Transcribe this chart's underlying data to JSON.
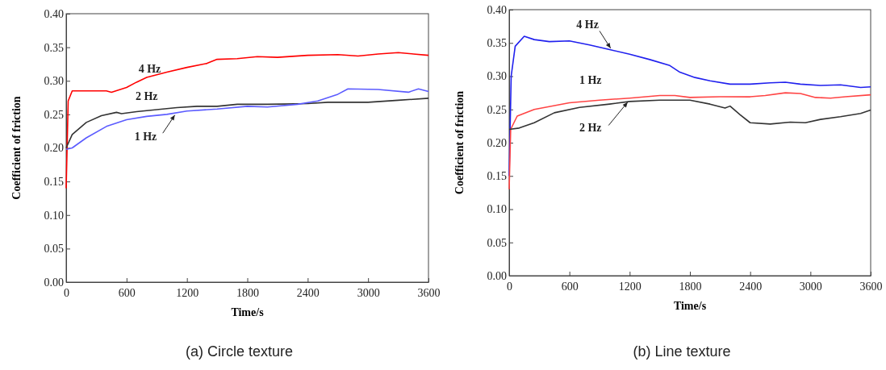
{
  "chart_data": [
    {
      "type": "line",
      "title": "(a) Circle texture",
      "xlabel": "Time/s",
      "ylabel": "Coefficient of friction",
      "xlim": [
        0,
        3600
      ],
      "xticks": [
        0,
        600,
        1200,
        1800,
        2400,
        3000,
        3600
      ],
      "ylim": [
        0,
        0.4
      ],
      "yticks": [
        {
          "value": 0,
          "label": "0.00"
        },
        {
          "value": 0.05,
          "label": "0.05"
        },
        {
          "value": 0.1,
          "label": "0.10"
        },
        {
          "value": 0.15,
          "label": "0.15"
        },
        {
          "value": 0.2,
          "label": "0.20"
        },
        {
          "value": 0.25,
          "label": "0.25"
        },
        {
          "value": 0.3,
          "label": "0.30"
        },
        {
          "value": 0.35,
          "label": "0.35"
        },
        {
          "value": 0.4,
          "label": "0.40"
        }
      ],
      "grid": false,
      "series": [
        {
          "name": "4 Hz",
          "color": "#ff0000",
          "x": [
            0,
            20,
            60,
            200,
            400,
            450,
            600,
            700,
            800,
            1000,
            1200,
            1400,
            1500,
            1700,
            1900,
            2100,
            2400,
            2700,
            2900,
            3100,
            3300,
            3450,
            3600
          ],
          "values": [
            0.14,
            0.27,
            0.285,
            0.285,
            0.285,
            0.283,
            0.29,
            0.298,
            0.305,
            0.313,
            0.32,
            0.326,
            0.332,
            0.333,
            0.336,
            0.335,
            0.338,
            0.339,
            0.337,
            0.34,
            0.342,
            0.34,
            0.338
          ]
        },
        {
          "name": "2 Hz",
          "color": "#333333",
          "x": [
            0,
            60,
            200,
            350,
            500,
            550,
            700,
            900,
            1100,
            1300,
            1500,
            1700,
            2000,
            2400,
            2600,
            3000,
            3300,
            3600
          ],
          "values": [
            0.2,
            0.22,
            0.238,
            0.248,
            0.253,
            0.251,
            0.254,
            0.257,
            0.26,
            0.262,
            0.262,
            0.265,
            0.265,
            0.266,
            0.268,
            0.268,
            0.271,
            0.274
          ]
        },
        {
          "name": "1 Hz",
          "color": "#5b5bff",
          "x": [
            0,
            60,
            200,
            400,
            600,
            800,
            1000,
            1200,
            1500,
            1800,
            2000,
            2300,
            2500,
            2700,
            2800,
            3100,
            3400,
            3500,
            3600
          ],
          "values": [
            0.198,
            0.2,
            0.215,
            0.232,
            0.242,
            0.247,
            0.25,
            0.255,
            0.258,
            0.262,
            0.261,
            0.265,
            0.27,
            0.28,
            0.288,
            0.287,
            0.283,
            0.288,
            0.284
          ]
        }
      ]
    },
    {
      "type": "line",
      "title": "(b) Line texture",
      "xlabel": "Time/s",
      "ylabel": "Coefficient of friction",
      "xlim": [
        0,
        3600
      ],
      "xticks": [
        0,
        600,
        1200,
        1800,
        2400,
        3000,
        3600
      ],
      "ylim": [
        0,
        0.4
      ],
      "yticks": [
        {
          "value": 0,
          "label": "0.00"
        },
        {
          "value": 0.05,
          "label": "0.05"
        },
        {
          "value": 0.1,
          "label": "0.10"
        },
        {
          "value": 0.15,
          "label": "0.15"
        },
        {
          "value": 0.2,
          "label": "0.20"
        },
        {
          "value": 0.25,
          "label": "0.25"
        },
        {
          "value": 0.3,
          "label": "0.30"
        },
        {
          "value": 0.35,
          "label": "0.35"
        },
        {
          "value": 0.4,
          "label": "0.40"
        }
      ],
      "grid": false,
      "series": [
        {
          "name": "4 Hz",
          "color": "#2020ee",
          "x": [
            0,
            20,
            60,
            150,
            250,
            400,
            600,
            800,
            1000,
            1200,
            1400,
            1600,
            1700,
            1850,
            2000,
            2200,
            2400,
            2600,
            2750,
            2900,
            3100,
            3300,
            3500,
            3600
          ],
          "values": [
            0.15,
            0.3,
            0.345,
            0.36,
            0.355,
            0.352,
            0.353,
            0.347,
            0.34,
            0.333,
            0.325,
            0.316,
            0.306,
            0.298,
            0.293,
            0.288,
            0.288,
            0.29,
            0.291,
            0.288,
            0.286,
            0.287,
            0.283,
            0.284
          ]
        },
        {
          "name": "1 Hz",
          "color": "#ff4444",
          "x": [
            0,
            15,
            80,
            250,
            600,
            900,
            1200,
            1500,
            1650,
            1800,
            2100,
            2400,
            2550,
            2750,
            2900,
            3050,
            3200,
            3350,
            3600
          ],
          "values": [
            0.13,
            0.22,
            0.24,
            0.25,
            0.26,
            0.264,
            0.267,
            0.271,
            0.271,
            0.268,
            0.269,
            0.269,
            0.271,
            0.275,
            0.274,
            0.268,
            0.267,
            0.269,
            0.272
          ]
        },
        {
          "name": "2 Hz",
          "color": "#333333",
          "x": [
            0,
            100,
            250,
            450,
            700,
            1000,
            1200,
            1500,
            1800,
            2000,
            2150,
            2200,
            2300,
            2400,
            2600,
            2800,
            2950,
            3100,
            3300,
            3500,
            3600
          ],
          "values": [
            0.22,
            0.222,
            0.23,
            0.245,
            0.253,
            0.258,
            0.262,
            0.264,
            0.264,
            0.258,
            0.252,
            0.255,
            0.242,
            0.23,
            0.228,
            0.231,
            0.23,
            0.235,
            0.239,
            0.244,
            0.249
          ]
        }
      ]
    }
  ]
}
